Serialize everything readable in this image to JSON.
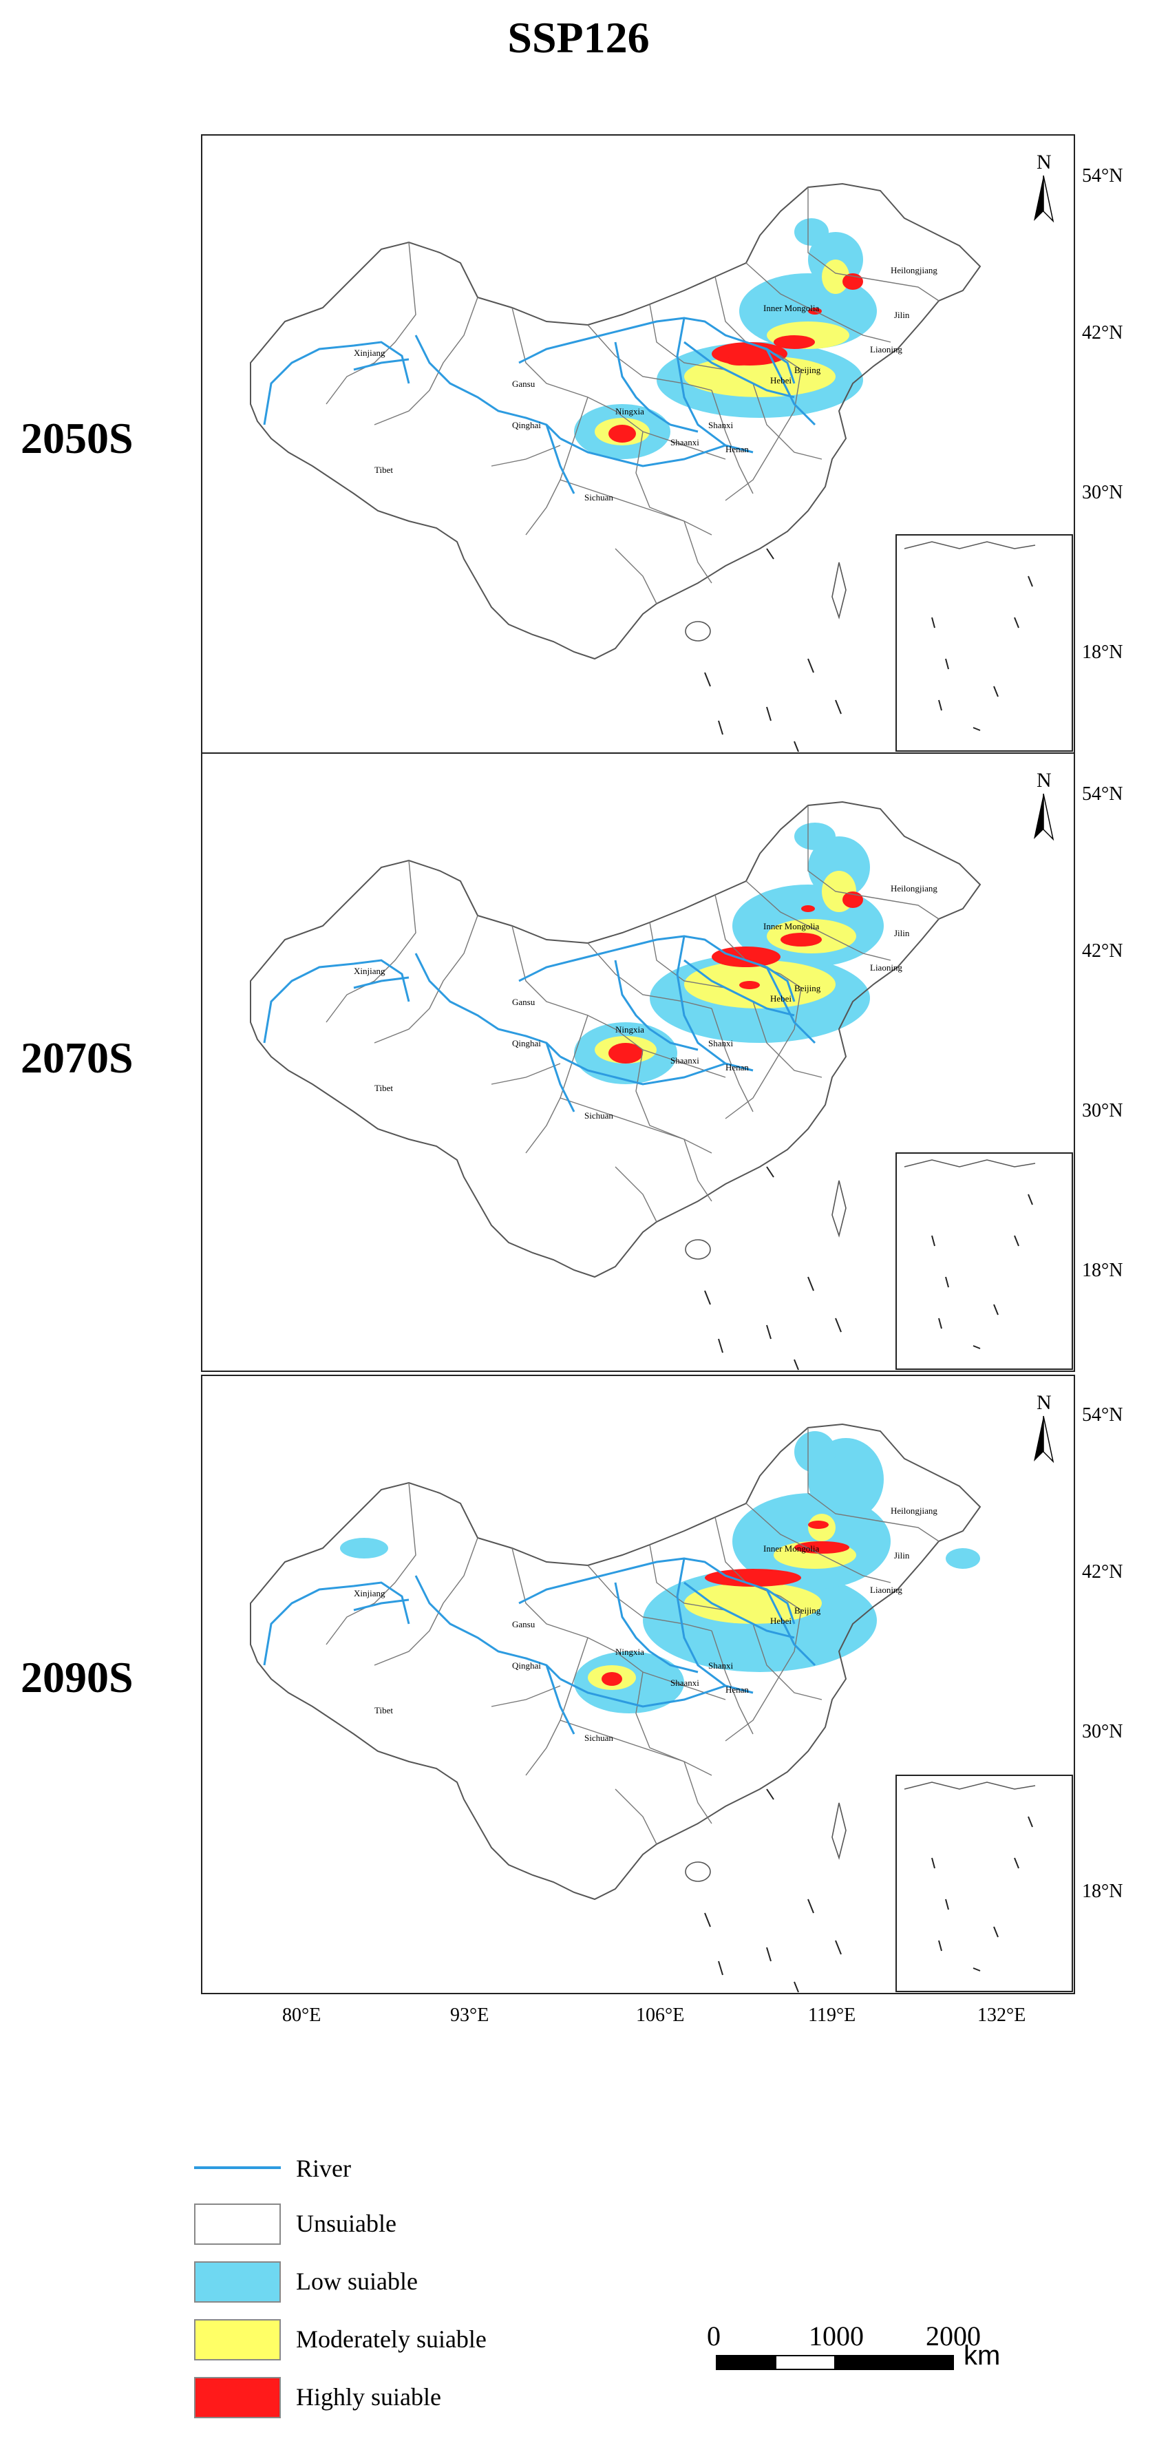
{
  "title": "SSP126",
  "panels": [
    {
      "period": "2050S"
    },
    {
      "period": "2070S"
    },
    {
      "period": "2090S"
    }
  ],
  "province_labels": [
    "Xinjiang",
    "Tibet",
    "Qinghai",
    "Gansu",
    "Sichuan",
    "Inner Mongolia",
    "Heilongjiang",
    "Jilin",
    "Liaoning",
    "Hebei",
    "Beijing",
    "Ningxia",
    "Shaanxi",
    "Shanxi",
    "Henan"
  ],
  "north_arrow": "N",
  "lat_ticks": [
    "54°N",
    "42°N",
    "30°N",
    "18°N"
  ],
  "lon_ticks": [
    "80°E",
    "93°E",
    "106°E",
    "119°E",
    "132°E"
  ],
  "legend": [
    {
      "label": "River",
      "type": "line",
      "color": "#2d9be0"
    },
    {
      "label": "Unsuiable",
      "type": "box",
      "color": "#ffffff"
    },
    {
      "label": "Low suiable",
      "type": "box",
      "color": "#6fd8f2"
    },
    {
      "label": "Moderately suiable",
      "type": "box",
      "color": "#ffff66"
    },
    {
      "label": "Highly suiable",
      "type": "box",
      "color": "#ff1a1a"
    }
  ],
  "scale_bar": {
    "ticks": [
      "0",
      "1000",
      "2000"
    ],
    "unit": "km"
  },
  "colors": {
    "river": "#2d9be0",
    "low": "#6fd8f2",
    "moderate": "#ffff66",
    "high": "#ff1a1a",
    "border": "#555555"
  }
}
